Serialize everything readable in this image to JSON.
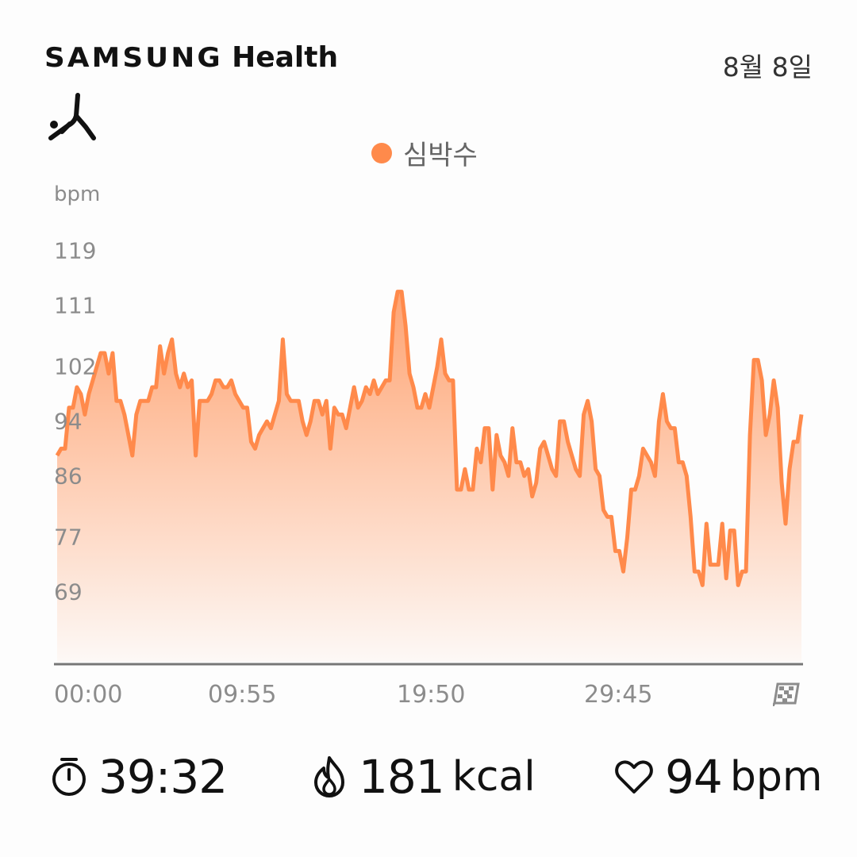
{
  "header": {
    "brand_samsung": "SAMSUNG",
    "brand_health": "Health",
    "date": "8월 8일",
    "activity_icon": "yoga-pose-icon"
  },
  "legend": {
    "label": "심박수",
    "color": "#ff8a4b"
  },
  "chart_data": {
    "type": "area",
    "unit_label": "bpm",
    "y_ticks": [
      "119",
      "111",
      "102",
      "94",
      "86",
      "77",
      "69"
    ],
    "x_ticks": [
      "00:00",
      "09:55",
      "19:50",
      "29:45"
    ],
    "x_end_icon": "checkered-flag-icon",
    "ylim": [
      60,
      128
    ],
    "color": "#ff8a4b",
    "series": [
      {
        "values": [
          89,
          90,
          90,
          96,
          96,
          99,
          98,
          95,
          98,
          100,
          102,
          104,
          104,
          101,
          104,
          97,
          97,
          95,
          92,
          89,
          95,
          97,
          97,
          97,
          99,
          99,
          105,
          101,
          104,
          106,
          101,
          99,
          101,
          99,
          100,
          89,
          97,
          97,
          97,
          98,
          100,
          100,
          99,
          99,
          100,
          98,
          97,
          96,
          96,
          91,
          90,
          92,
          93,
          94,
          93,
          95,
          97,
          106,
          98,
          97,
          97,
          97,
          94,
          92,
          94,
          97,
          97,
          95,
          97,
          90,
          96,
          95,
          95,
          93,
          96,
          99,
          96,
          97,
          99,
          98,
          100,
          98,
          99,
          100,
          100,
          110,
          113,
          113,
          108,
          101,
          99,
          96,
          96,
          98,
          96,
          99,
          102,
          106,
          101,
          100,
          100,
          84,
          84,
          87,
          84,
          84,
          90,
          88,
          93,
          93,
          84,
          92,
          89,
          88,
          86,
          93,
          88,
          88,
          86,
          87,
          83,
          85,
          90,
          91,
          89,
          87,
          86,
          94,
          94,
          91,
          89,
          87,
          86,
          95,
          97,
          94,
          87,
          86,
          81,
          80,
          80,
          75,
          75,
          72,
          77,
          84,
          84,
          86,
          90,
          89,
          88,
          86,
          94,
          98,
          94,
          93,
          93,
          88,
          88,
          86,
          80,
          72,
          72,
          70,
          79,
          73,
          73,
          73,
          79,
          71,
          78,
          78,
          70,
          72,
          72,
          92,
          103,
          103,
          100,
          92,
          95,
          100,
          96,
          85,
          79,
          87,
          91,
          91,
          95
        ]
      }
    ]
  },
  "stats": {
    "duration": {
      "icon": "stopwatch-icon",
      "value": "39:32"
    },
    "calories": {
      "icon": "flame-icon",
      "value": "181",
      "unit": "kcal"
    },
    "heart_rate": {
      "icon": "heart-icon",
      "value": "94",
      "unit": "bpm"
    }
  }
}
